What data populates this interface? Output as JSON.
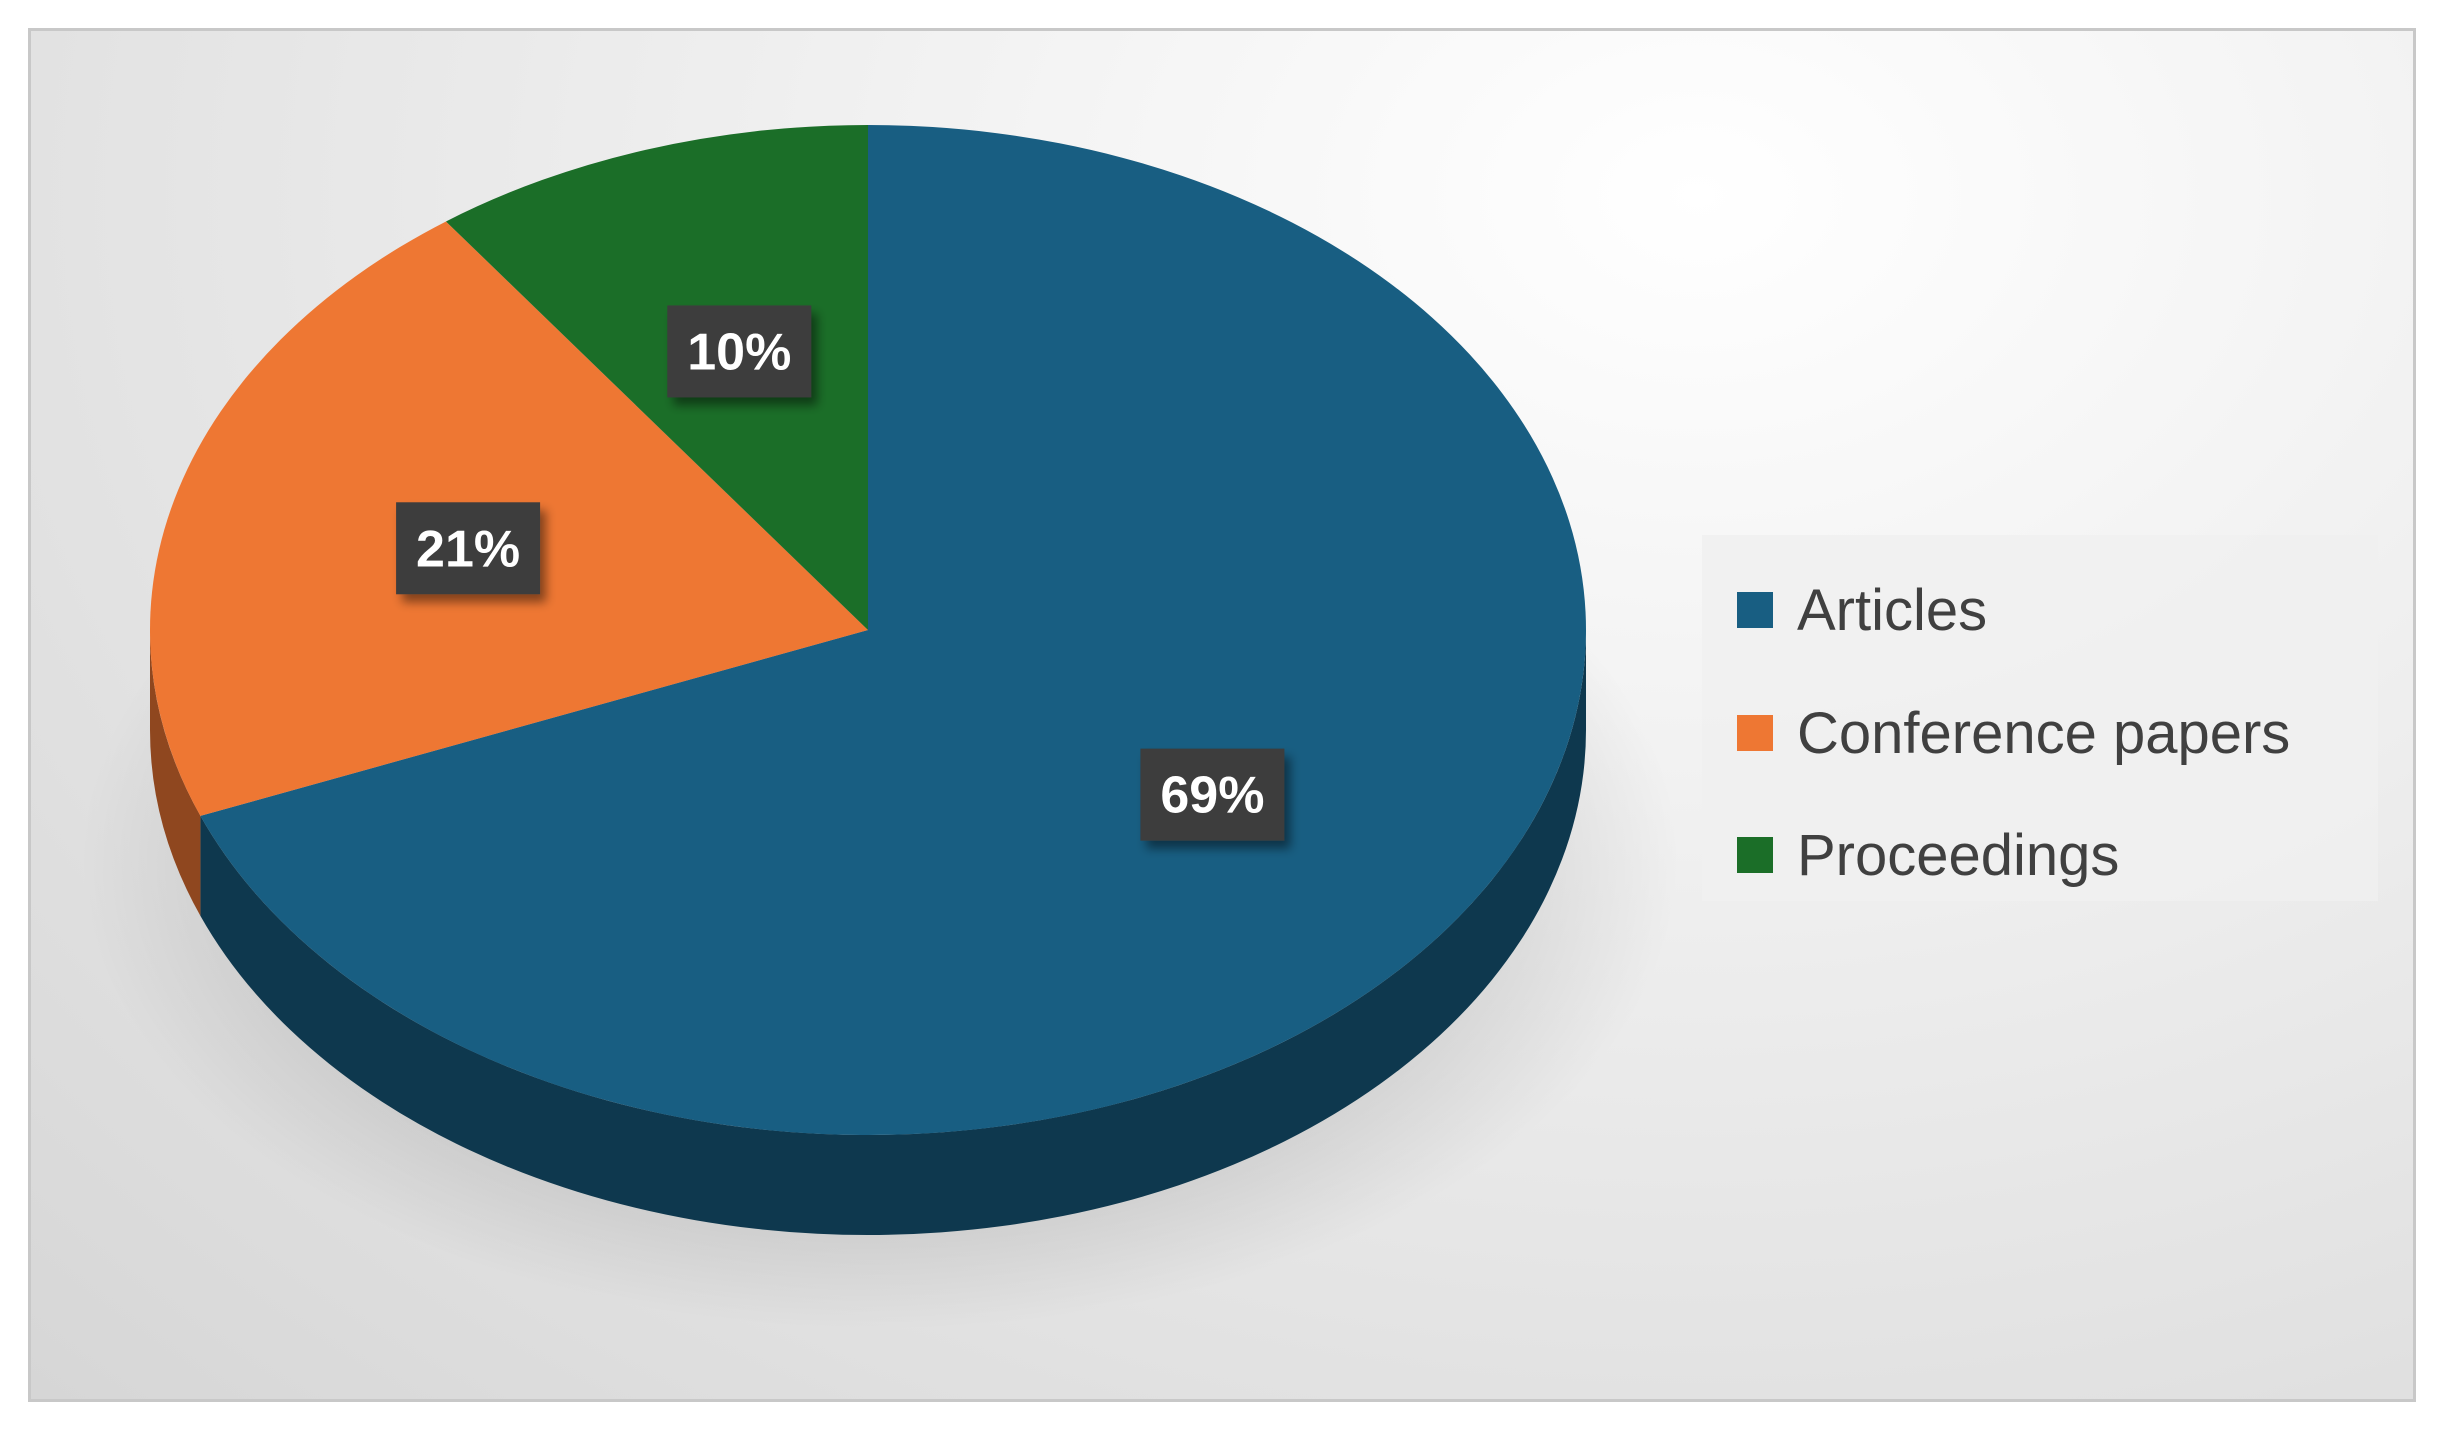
{
  "chart_data": {
    "type": "pie",
    "categories": [
      "Articles",
      "Conference papers",
      "Proceedings"
    ],
    "values": [
      69,
      21,
      10
    ],
    "data_labels": [
      "69%",
      "21%",
      "10%"
    ],
    "colors": [
      "#185e82",
      "#ee7733",
      "#1b6e28"
    ],
    "legend_position": "right",
    "title": ""
  }
}
